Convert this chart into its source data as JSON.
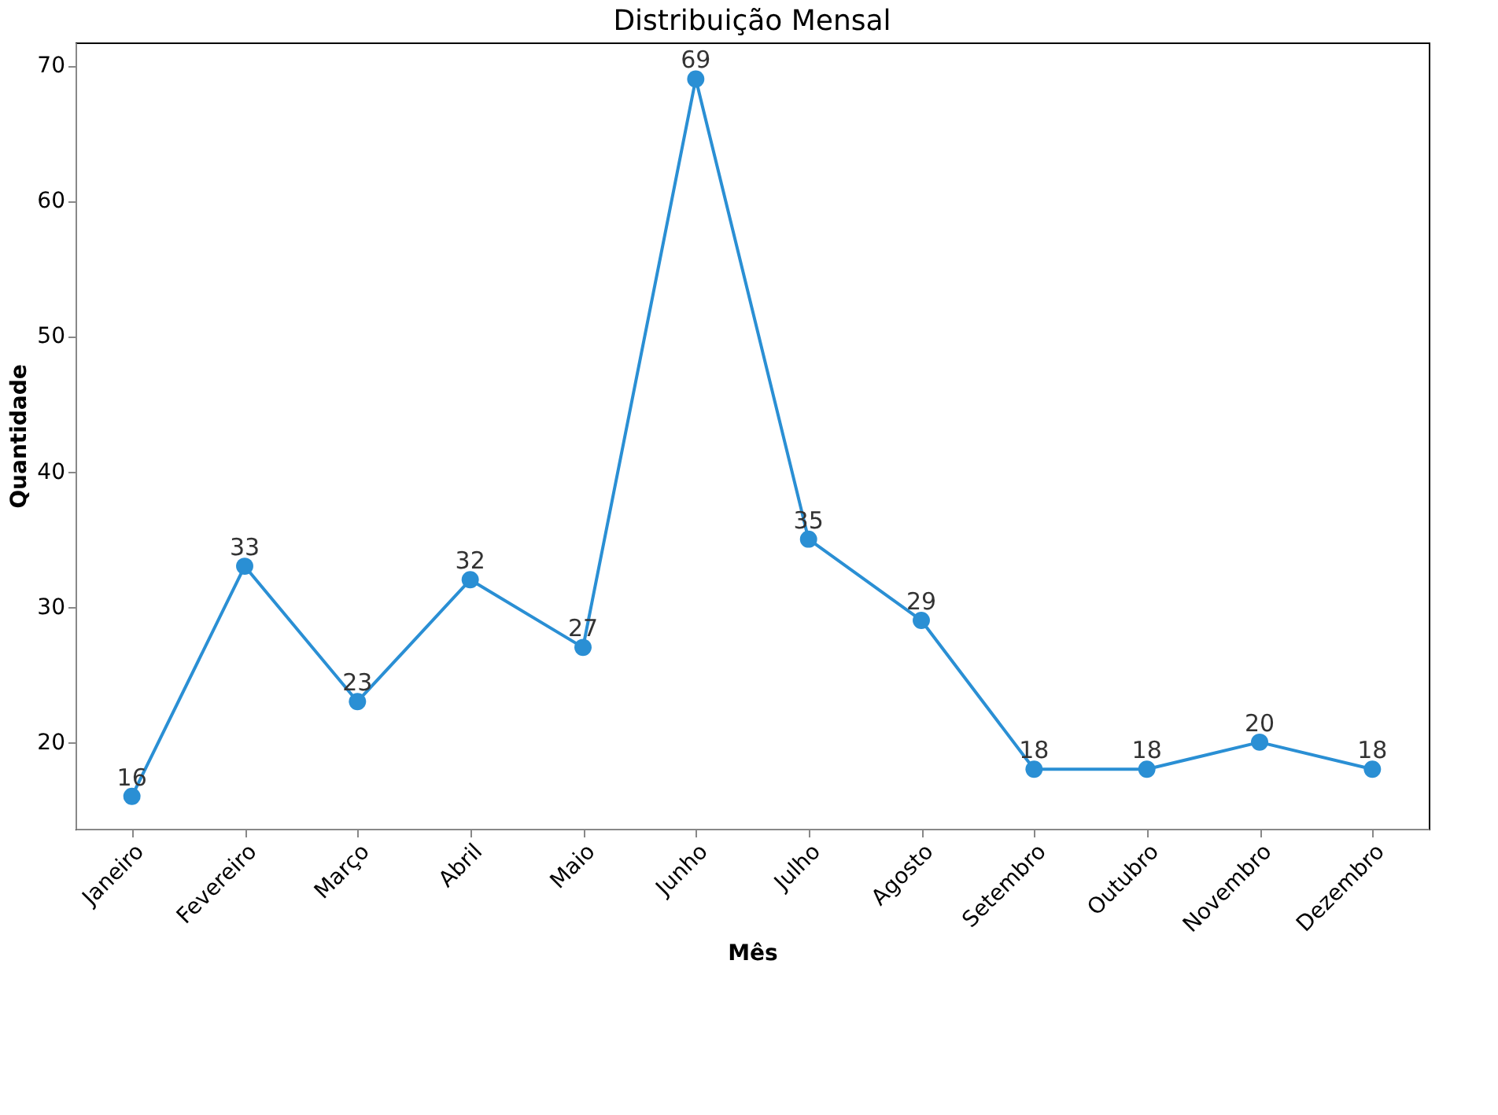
{
  "chart_data": {
    "type": "line",
    "title": "Distribuição Mensal",
    "xlabel": "Mês",
    "ylabel": "Quantidade",
    "categories": [
      "Janeiro",
      "Fevereiro",
      "Março",
      "Abril",
      "Maio",
      "Junho",
      "Julho",
      "Agosto",
      "Setembro",
      "Outubro",
      "Novembro",
      "Dezembro"
    ],
    "values": [
      16,
      33,
      23,
      32,
      27,
      69,
      35,
      29,
      18,
      18,
      20,
      18
    ],
    "color": "#2a8fd4",
    "ylim": [
      13.6,
      71.7
    ],
    "yticks": [
      20,
      30,
      40,
      50,
      60,
      70
    ],
    "marker": "circle",
    "data_labels": true
  }
}
